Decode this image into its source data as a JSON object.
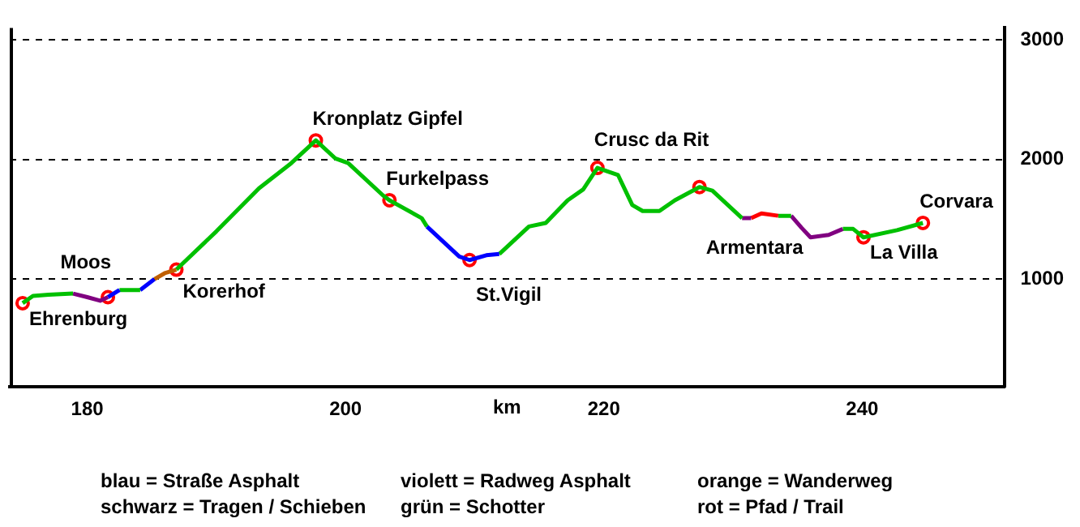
{
  "chart_data": {
    "type": "line",
    "xlabel": "km",
    "xlim": [
      174,
      251
    ],
    "xticks": [
      180,
      200,
      220,
      240
    ],
    "ylim": [
      100,
      3100
    ],
    "yticks": [
      1000,
      2000,
      3000
    ],
    "grid": "y",
    "legend": false,
    "marker": "none",
    "line_style": "solid",
    "series": [
      {
        "color": "#00c000",
        "x": [
          175.0,
          175.8,
          177.0,
          178.9
        ],
        "values": [
          800,
          860,
          870,
          880
        ]
      },
      {
        "color": "#800080",
        "x": [
          178.9,
          180.0,
          181.0,
          181.6
        ],
        "values": [
          880,
          850,
          820,
          850
        ]
      },
      {
        "color": "#0000ff",
        "x": [
          181.6,
          182.5
        ],
        "values": [
          850,
          910
        ]
      },
      {
        "color": "#00c000",
        "x": [
          182.5,
          184.1
        ],
        "values": [
          910,
          910
        ]
      },
      {
        "color": "#0000ff",
        "x": [
          184.1,
          185.2
        ],
        "values": [
          910,
          1000
        ]
      },
      {
        "color": "#c06000",
        "x": [
          185.2,
          186.0,
          186.9
        ],
        "values": [
          1000,
          1050,
          1080
        ]
      },
      {
        "color": "#00c000",
        "x": [
          186.9,
          190.0,
          193.3,
          195.8,
          197.7,
          199.2,
          200.2,
          202.9,
          203.4,
          205.9,
          206.3
        ],
        "values": [
          1080,
          1400,
          1760,
          1970,
          2160,
          2010,
          1970,
          1700,
          1660,
          1510,
          1440
        ]
      },
      {
        "color": "#0000ff",
        "x": [
          206.3,
          207.5,
          208.8,
          209.6,
          210.9,
          211.9
        ],
        "values": [
          1440,
          1320,
          1190,
          1160,
          1200,
          1210
        ]
      },
      {
        "color": "#00c000",
        "x": [
          211.9,
          214.2,
          215.5,
          217.2,
          218.4,
          219.5,
          221.1,
          222.2,
          223.0,
          224.3,
          225.5,
          227.4,
          228.4,
          230.7
        ],
        "values": [
          1210,
          1440,
          1470,
          1660,
          1750,
          1930,
          1870,
          1620,
          1570,
          1570,
          1660,
          1770,
          1740,
          1510
        ]
      },
      {
        "color": "#800080",
        "x": [
          230.7,
          231.4
        ],
        "values": [
          1510,
          1510
        ]
      },
      {
        "color": "#ff0000",
        "x": [
          231.4,
          232.2,
          233.5
        ],
        "values": [
          1510,
          1550,
          1530
        ]
      },
      {
        "color": "#00c000",
        "x": [
          233.5,
          234.5
        ],
        "values": [
          1530,
          1530
        ]
      },
      {
        "color": "#800080",
        "x": [
          234.5,
          235.3,
          236.0,
          237.4,
          238.5
        ],
        "values": [
          1530,
          1430,
          1350,
          1370,
          1420
        ]
      },
      {
        "color": "#00c000",
        "x": [
          238.5,
          239.3,
          240.1,
          242.7,
          244.7
        ],
        "values": [
          1420,
          1420,
          1350,
          1410,
          1470
        ]
      },
      {
        "type": "scatter",
        "marker": "circle",
        "color": "#ff0000",
        "x": [
          175.0,
          181.6,
          186.9,
          197.7,
          203.4,
          209.6,
          219.5,
          227.4,
          240.1,
          244.7
        ],
        "values": [
          800,
          850,
          1080,
          2160,
          1660,
          1160,
          1930,
          1770,
          1350,
          1470
        ]
      }
    ],
    "annotations": [
      {
        "text": "Ehrenburg",
        "x": 175.0,
        "y": 800
      },
      {
        "text": "Moos",
        "x": 181.6,
        "y": 850
      },
      {
        "text": "Korerhof",
        "x": 186.9,
        "y": 1080
      },
      {
        "text": "Kronplatz Gipfel",
        "x": 197.7,
        "y": 2160
      },
      {
        "text": "Furkelpass",
        "x": 203.4,
        "y": 1660
      },
      {
        "text": "St.Vigil",
        "x": 209.6,
        "y": 1160
      },
      {
        "text": "Crusc da Rit",
        "x": 219.5,
        "y": 1930
      },
      {
        "text": "Armentara",
        "x": 227.4,
        "y": 1770
      },
      {
        "text": "La Villa",
        "x": 240.1,
        "y": 1350
      },
      {
        "text": "Corvara",
        "x": 244.7,
        "y": 1470
      },
      "blau = Straße Asphalt",
      "violett = Radweg Asphalt",
      "orange = Wanderweg",
      "schwarz = Tragen / Schieben",
      "grün = Schotter",
      "rot = Pfad / Trail"
    ]
  }
}
